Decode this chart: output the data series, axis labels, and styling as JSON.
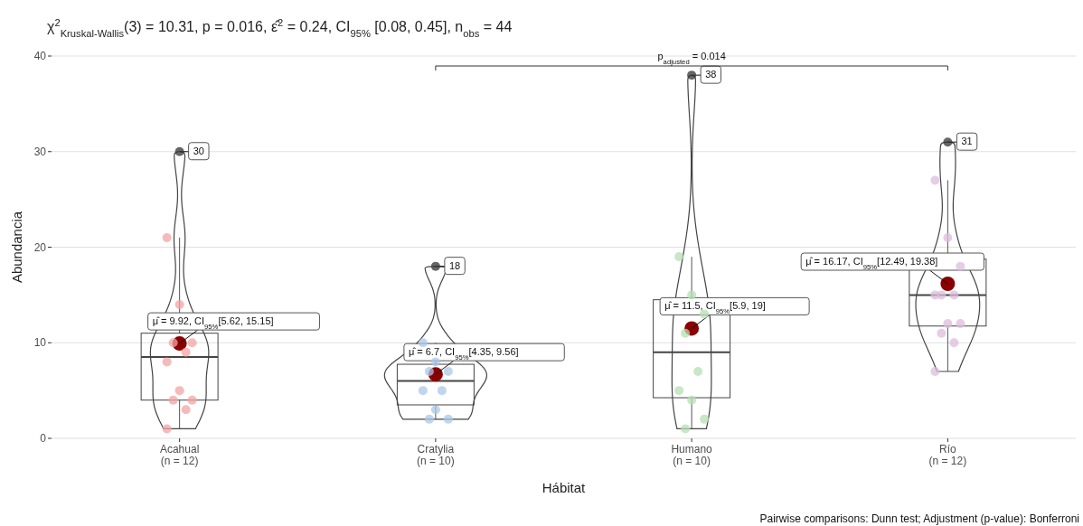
{
  "chart_data": {
    "type": "box",
    "title": "χ$^{2}$$_{Kruskal-Wallis}$(3) = 10.31, p = 0.016, ε̂$^{2}$ = 0.24, CI$_{95%}$ [0.08, 0.45], n$_{obs}$ = 44",
    "xlabel": "Hábitat",
    "ylabel": "Abundancia",
    "categories": [
      "Acahual\n(n = 12)",
      "Cratylia\n(n = 10)",
      "Humano\n(n = 10)",
      "Río\n(n = 12)"
    ],
    "ylim": [
      0,
      40
    ],
    "yticks": [
      0,
      10,
      20,
      30,
      40
    ],
    "grid": "y",
    "boxes": [
      {
        "low": 1,
        "q1": 4,
        "median": 8.5,
        "q3": 11,
        "high": 21
      },
      {
        "low": 2,
        "q1": 3.5,
        "median": 6,
        "q3": 7.75,
        "high": 10
      },
      {
        "low": 1,
        "q1": 4.25,
        "median": 9,
        "q3": 14.5,
        "high": 19
      },
      {
        "low": 7,
        "q1": 11.75,
        "median": 15,
        "q3": 18.75,
        "high": 27
      }
    ],
    "series": [
      {
        "type": "scatter",
        "color": "#8b0000",
        "x": [
          "Acahual\n(n = 12)",
          "Cratylia\n(n = 10)",
          "Humano\n(n = 10)",
          "Río\n(n = 12)"
        ],
        "values": [
          9.92,
          6.7,
          11.5,
          16.17
        ]
      },
      {
        "type": "scatter",
        "color": "#333333",
        "x": [
          "Acahual\n(n = 12)",
          "Cratylia\n(n = 10)",
          "Humano\n(n = 10)",
          "Río\n(n = 12)"
        ],
        "values": [
          30,
          18,
          38,
          31
        ]
      },
      {
        "type": "scatter",
        "color": "#f4a3a3",
        "x": [
          "Acahual\n(n = 12)",
          "Acahual\n(n = 12)",
          "Acahual\n(n = 12)",
          "Acahual\n(n = 12)",
          "Acahual\n(n = 12)",
          "Acahual\n(n = 12)",
          "Acahual\n(n = 12)",
          "Acahual\n(n = 12)",
          "Acahual\n(n = 12)",
          "Acahual\n(n = 12)",
          "Acahual\n(n = 12)"
        ],
        "values": [
          21,
          14,
          10,
          10,
          9,
          8,
          5,
          4,
          4,
          3,
          1
        ]
      },
      {
        "type": "scatter",
        "color": "#a9c8e6",
        "x": [
          "Cratylia\n(n = 10)",
          "Cratylia\n(n = 10)",
          "Cratylia\n(n = 10)",
          "Cratylia\n(n = 10)",
          "Cratylia\n(n = 10)",
          "Cratylia\n(n = 10)",
          "Cratylia\n(n = 10)",
          "Cratylia\n(n = 10)",
          "Cratylia\n(n = 10)"
        ],
        "values": [
          10,
          8,
          7,
          7,
          5,
          5,
          3,
          2,
          2
        ]
      },
      {
        "type": "scatter",
        "color": "#b5dfb3",
        "x": [
          "Humano\n(n = 10)",
          "Humano\n(n = 10)",
          "Humano\n(n = 10)",
          "Humano\n(n = 10)",
          "Humano\n(n = 10)",
          "Humano\n(n = 10)",
          "Humano\n(n = 10)",
          "Humano\n(n = 10)",
          "Humano\n(n = 10)"
        ],
        "values": [
          19,
          15,
          13,
          11,
          7,
          5,
          4,
          2,
          1
        ]
      },
      {
        "type": "scatter",
        "color": "#dcbcdc",
        "x": [
          "Río\n(n = 12)",
          "Río\n(n = 12)",
          "Río\n(n = 12)",
          "Río\n(n = 12)",
          "Río\n(n = 12)",
          "Río\n(n = 12)",
          "Río\n(n = 12)",
          "Río\n(n = 12)",
          "Río\n(n = 12)",
          "Río\n(n = 12)",
          "Río\n(n = 12)"
        ],
        "values": [
          27,
          21,
          18,
          15,
          15,
          15,
          12,
          12,
          11,
          10,
          7
        ]
      }
    ],
    "annotations": [
      {
        "text": "μ̂ = 9.92, CI$_{95%}$[5.62, 15.15]",
        "x": "Acahual\n(n = 12)",
        "y": 9.92
      },
      {
        "text": "μ̂ = 6.7, CI$_{95%}$[4.35, 9.56]",
        "x": "Cratylia\n(n = 10)",
        "y": 6.7
      },
      {
        "text": "μ̂ = 11.5, CI$_{95%}$[5.9, 19]",
        "x": "Humano\n(n = 10)",
        "y": 11.5
      },
      {
        "text": "μ̂ = 16.17, CI$_{95%}$[12.49, 19.38]",
        "x": "Río\n(n = 12)",
        "y": 16.17
      },
      {
        "text": "30",
        "x": "Acahual\n(n = 12)",
        "y": 30
      },
      {
        "text": "18",
        "x": "Cratylia\n(n = 10)",
        "y": 18
      },
      {
        "text": "38",
        "x": "Humano\n(n = 10)",
        "y": 38
      },
      {
        "text": "31",
        "x": "Río\n(n = 12)",
        "y": 31
      },
      "p$_{adjusted}$ = 0.014",
      "Pairwise comparisons: Dunn test; Adjustment (p-value): Bonferroni"
    ]
  }
}
